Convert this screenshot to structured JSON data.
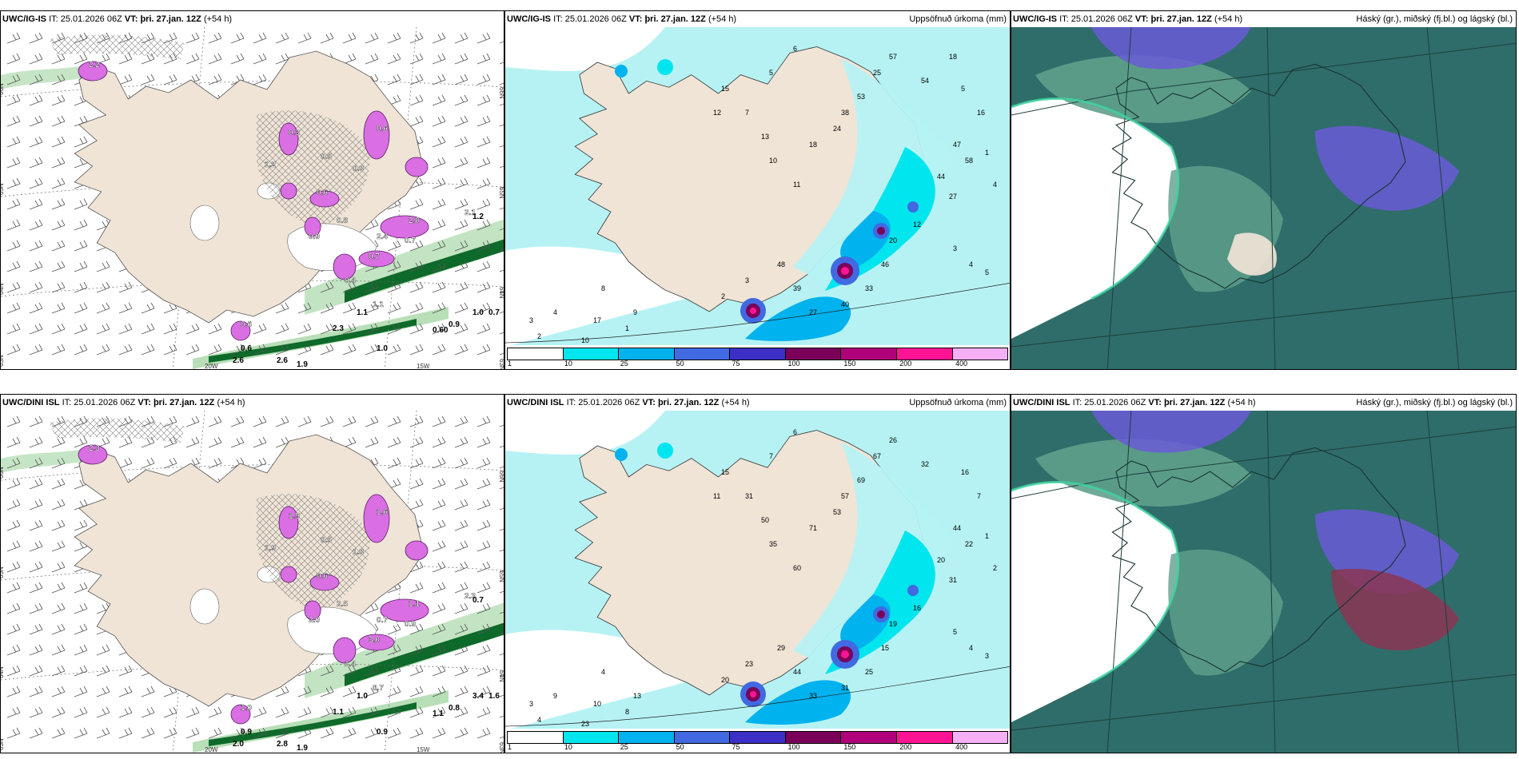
{
  "colors": {
    "land": "#efe4d6",
    "sea_precip_light": "#b6f2f4",
    "cloud_dark": "#2f6d6a",
    "cloud_mid": "#5fa08c",
    "cloud_high": "#6a5bd6",
    "cloud_low_red": "#8b3552",
    "green_light": "#b8dfb8",
    "green_dark": "#0e6a2a",
    "purple": "#d96fe3"
  },
  "legend": {
    "colors": [
      "#ffffff",
      "#00e5ee",
      "#00b2ee",
      "#4169e1",
      "#3b2fc6",
      "#7a005a",
      "#b0007a",
      "#ff1493",
      "#f5b0f5"
    ],
    "labels": [
      "1",
      "10",
      "25",
      "50",
      "75",
      "100",
      "150",
      "200",
      "400"
    ]
  },
  "rows": [
    {
      "model": "UWC/IG-IS",
      "it_label": "IT:",
      "it_value": "25.01.2026 06Z",
      "vt_label": "VT:",
      "vt_value": "þri. 27.jan. 12Z",
      "lead": "(+54 h)",
      "precip_title": "Uppsöfnuð úrkoma (mm)",
      "cloud_title": "Háský (gr.), miðský (fj.bl.) og lágský (bl.)",
      "lat_labels": [
        "66N",
        "65N",
        "64N",
        "63N"
      ],
      "lon_labels": [
        "20W",
        "15W"
      ],
      "snow_values": [
        "2.2",
        "0.3",
        "0.6",
        "0.5",
        "0.3",
        "0.6",
        "0.8",
        "2.4",
        "0.7",
        "2.8",
        "0.4",
        "1.1",
        "0.6",
        "2.1",
        "1.2",
        "0.7",
        "0.9"
      ],
      "rain_values": [
        "1.2",
        "1.1",
        "2.3",
        "2.6",
        "1.0",
        "0.6",
        "2.6",
        "1.9",
        "0.9",
        "1.0",
        "0.60",
        "0.7"
      ],
      "precip_values": [
        "2",
        "3",
        "4",
        "10",
        "17",
        "1",
        "8",
        "9",
        "15",
        "5",
        "6",
        "12",
        "7",
        "13",
        "10",
        "11",
        "18",
        "24",
        "38",
        "53",
        "25",
        "57",
        "54",
        "47",
        "58",
        "44",
        "27",
        "12",
        "20",
        "46",
        "33",
        "40",
        "27",
        "39",
        "48",
        "3",
        "2",
        "3",
        "4",
        "5",
        "4",
        "1",
        "16",
        "5",
        "18"
      ]
    },
    {
      "model": "UWC/DINI ISL",
      "it_label": "IT:",
      "it_value": "25.01.2026 06Z",
      "vt_label": "VT:",
      "vt_value": "þri. 27.jan. 12Z",
      "lead": "(+54 h)",
      "precip_title": "Uppsöfnuð úrkoma (mm)",
      "cloud_title": "Háský (gr.), miðský (fj.bl.) og lágský (bl.)",
      "lat_labels": [
        "66N",
        "65N",
        "64N",
        "63N"
      ],
      "lon_labels": [
        "20W",
        "15W"
      ],
      "snow_values": [
        "2.3",
        "1.5",
        "1.6",
        "0.5",
        "1.3",
        "0.6",
        "2.5",
        "0.7",
        "3.0",
        "1.1",
        "1.4",
        "0.7",
        "1.0",
        "2.3",
        "1.9",
        "0.9",
        "2.0"
      ],
      "rain_values": [
        "0.7",
        "1.0",
        "1.1",
        "2.0",
        "0.9",
        "0.9",
        "2.8",
        "1.9",
        "0.8",
        "3.4",
        "1.1",
        "1.6"
      ],
      "precip_values": [
        "4",
        "3",
        "9",
        "23",
        "10",
        "8",
        "4",
        "13",
        "15",
        "7",
        "6",
        "11",
        "31",
        "50",
        "35",
        "60",
        "71",
        "53",
        "57",
        "69",
        "67",
        "26",
        "32",
        "44",
        "22",
        "20",
        "31",
        "16",
        "19",
        "15",
        "25",
        "31",
        "33",
        "44",
        "29",
        "23",
        "20",
        "5",
        "4",
        "3",
        "2",
        "1",
        "7",
        "16"
      ]
    }
  ]
}
